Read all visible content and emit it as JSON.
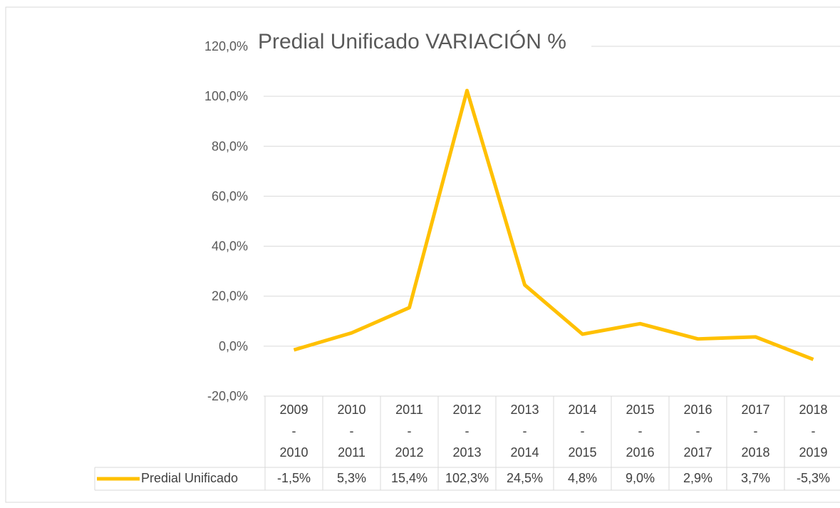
{
  "chart_data": {
    "type": "line",
    "title": "Predial Unificado VARIACIÓN %",
    "categories": [
      "2009\n-\n2010",
      "2010\n-\n2011",
      "2011\n-\n2012",
      "2012\n-\n2013",
      "2013\n-\n2014",
      "2014\n-\n2015",
      "2015\n-\n2016",
      "2016\n-\n2017",
      "2017\n-\n2018",
      "2018\n-\n2019"
    ],
    "series": [
      {
        "name": "Predial Unificado",
        "color": "#FFC000",
        "values": [
          -1.5,
          5.3,
          15.4,
          102.3,
          24.5,
          4.8,
          9.0,
          2.9,
          3.7,
          -5.3
        ],
        "value_labels": [
          "-1,5%",
          "5,3%",
          "15,4%",
          "102,3%",
          "24,5%",
          "4,8%",
          "9,0%",
          "2,9%",
          "3,7%",
          "-5,3%"
        ]
      }
    ],
    "ylim": [
      -20,
      120
    ],
    "yticks": [
      {
        "value": -20,
        "label": "-20,0%"
      },
      {
        "value": 0,
        "label": "0,0%"
      },
      {
        "value": 20,
        "label": "20,0%"
      },
      {
        "value": 40,
        "label": "40,0%"
      },
      {
        "value": 60,
        "label": "60,0%"
      },
      {
        "value": 80,
        "label": "80,0%"
      },
      {
        "value": 100,
        "label": "100,0%"
      },
      {
        "value": 120,
        "label": "120,0%"
      }
    ],
    "grid": true
  }
}
